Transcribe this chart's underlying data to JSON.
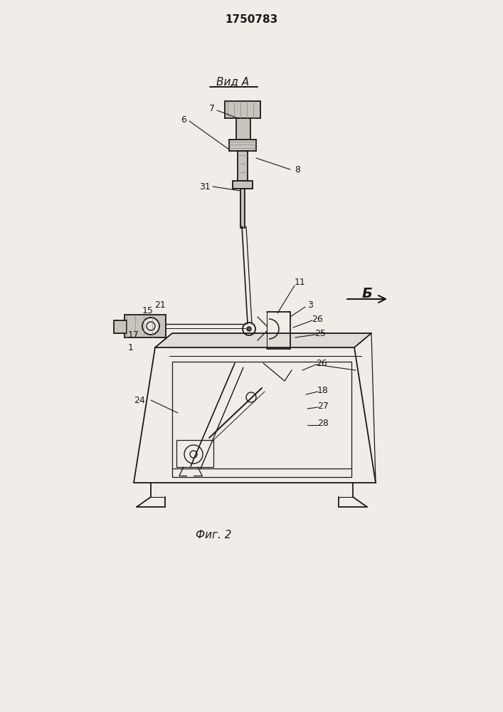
{
  "title": "1750783",
  "bg_color": "#f0ede8",
  "line_color": "#1a1a1a",
  "label_color": "#1a1a1a",
  "fig_width": 7.07,
  "fig_height": 10.0,
  "view_label": "Вид A",
  "fig_label": "Фиг. 2",
  "side_label": "Б"
}
